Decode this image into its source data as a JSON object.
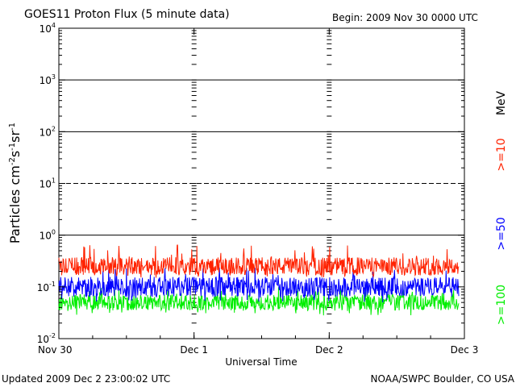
{
  "header": {
    "title": "GOES11 Proton Flux (5 minute data)",
    "begin": "Begin: 2009 Nov 30 0000 UTC"
  },
  "footer": {
    "updated": "Updated 2009 Dec  2 23:00:02 UTC",
    "credit": "NOAA/SWPC Boulder, CO USA"
  },
  "chart_data": {
    "type": "line",
    "title": "GOES11 Proton Flux (5 minute data)",
    "xlabel": "Universal Time",
    "ylabel": "Particles cm-2s-1sr-1",
    "ylabel_parts": {
      "prefix": "Particles cm",
      "exp1": "-2",
      "mid1": "s",
      "exp2": "-1",
      "mid2": "sr",
      "exp3": "-1"
    },
    "yscale": "log",
    "ylim": [
      0.01,
      10000
    ],
    "yticks": [
      {
        "value": 0.01,
        "base": "10",
        "exp": "-2"
      },
      {
        "value": 0.1,
        "base": "10",
        "exp": "-1"
      },
      {
        "value": 1,
        "base": "10",
        "exp": "0"
      },
      {
        "value": 10,
        "base": "10",
        "exp": "1"
      },
      {
        "value": 100,
        "base": "10",
        "exp": "2"
      },
      {
        "value": 1000,
        "base": "10",
        "exp": "3"
      },
      {
        "value": 10000,
        "base": "10",
        "exp": "4"
      }
    ],
    "xlim": [
      "2009-11-30",
      "2009-12-03"
    ],
    "xticks": [
      {
        "date": "2009-11-30",
        "label": "Nov 30"
      },
      {
        "date": "2009-12-01",
        "label": "Dec 1"
      },
      {
        "date": "2009-12-02",
        "label": "Dec 2"
      },
      {
        "date": "2009-12-03",
        "label": "Dec 3"
      }
    ],
    "hlines": [
      {
        "value": 1,
        "style": "solid"
      },
      {
        "value": 10,
        "style": "dashed"
      },
      {
        "value": 100,
        "style": "solid"
      },
      {
        "value": 1000,
        "style": "solid"
      }
    ],
    "unit_label": "MeV",
    "series": [
      {
        "name": ">=10",
        "color": "#ff2200",
        "typical": 0.25,
        "min": 0.15,
        "max": 0.65
      },
      {
        "name": ">=50",
        "color": "#0000ff",
        "typical": 0.1,
        "min": 0.05,
        "max": 0.25
      },
      {
        "name": ">=100",
        "color": "#00ee00",
        "typical": 0.05,
        "min": 0.028,
        "max": 0.1
      }
    ]
  }
}
